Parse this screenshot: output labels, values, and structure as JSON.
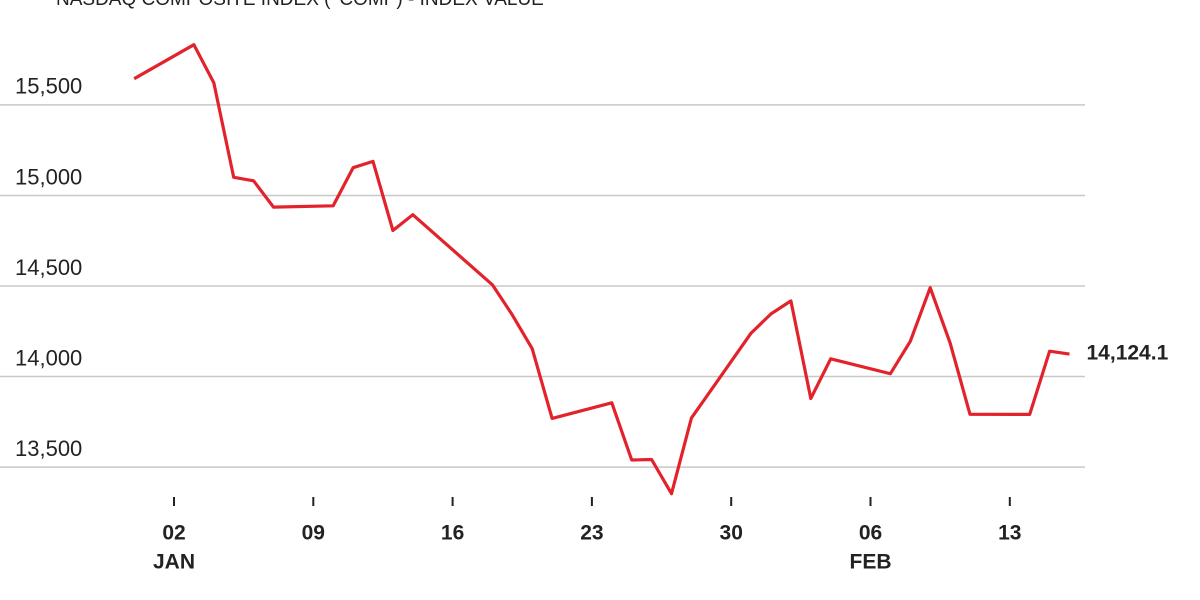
{
  "chart_data": {
    "type": "line",
    "title": "NASDAQ COMPOSITE INDEX (^COMP) - INDEX VALUE",
    "x": [
      "12-31",
      "01-03",
      "01-04",
      "01-05",
      "01-06",
      "01-07",
      "01-10",
      "01-11",
      "01-12",
      "01-13",
      "01-14",
      "01-18",
      "01-19",
      "01-20",
      "01-21",
      "01-24",
      "01-25",
      "01-26",
      "01-27",
      "01-28",
      "01-31",
      "02-01",
      "02-02",
      "02-03",
      "02-04",
      "02-07",
      "02-08",
      "02-09",
      "02-10",
      "02-11",
      "02-14",
      "02-15",
      "02-16"
    ],
    "series": [
      {
        "name": "NASDAQ Composite",
        "color": "#e3232c",
        "values": [
          15645.0,
          15832.8,
          15622.7,
          15100.2,
          15080.9,
          14935.9,
          14942.8,
          15153.5,
          15188.4,
          14806.8,
          14893.8,
          14506.9,
          14340.3,
          14154.0,
          13768.9,
          13855.1,
          13539.3,
          13542.1,
          13352.8,
          13770.6,
          14239.9,
          14346.0,
          14417.5,
          13878.8,
          14098.0,
          14015.7,
          14194.5,
          14490.4,
          14185.6,
          13791.2,
          13790.9,
          14139.8,
          14124.1
        ]
      }
    ],
    "last_value_label": "14,124.1",
    "ylim": [
      13200,
      15900
    ],
    "yticks": [
      {
        "value": 13500,
        "label": "13,500"
      },
      {
        "value": 14000,
        "label": "14,000"
      },
      {
        "value": 14500,
        "label": "14,500"
      },
      {
        "value": 15000,
        "label": "15,000"
      },
      {
        "value": 15500,
        "label": "15,500"
      }
    ],
    "xticks": [
      {
        "value": "01-02",
        "label": "02"
      },
      {
        "value": "01-09",
        "label": "09"
      },
      {
        "value": "01-16",
        "label": "16"
      },
      {
        "value": "01-23",
        "label": "23"
      },
      {
        "value": "01-30",
        "label": "30"
      },
      {
        "value": "02-06",
        "label": "06"
      },
      {
        "value": "02-13",
        "label": "13"
      }
    ],
    "xtick_months": [
      {
        "value": "01-02",
        "label": "JAN"
      },
      {
        "value": "02-06",
        "label": "FEB"
      }
    ],
    "grid": true
  }
}
